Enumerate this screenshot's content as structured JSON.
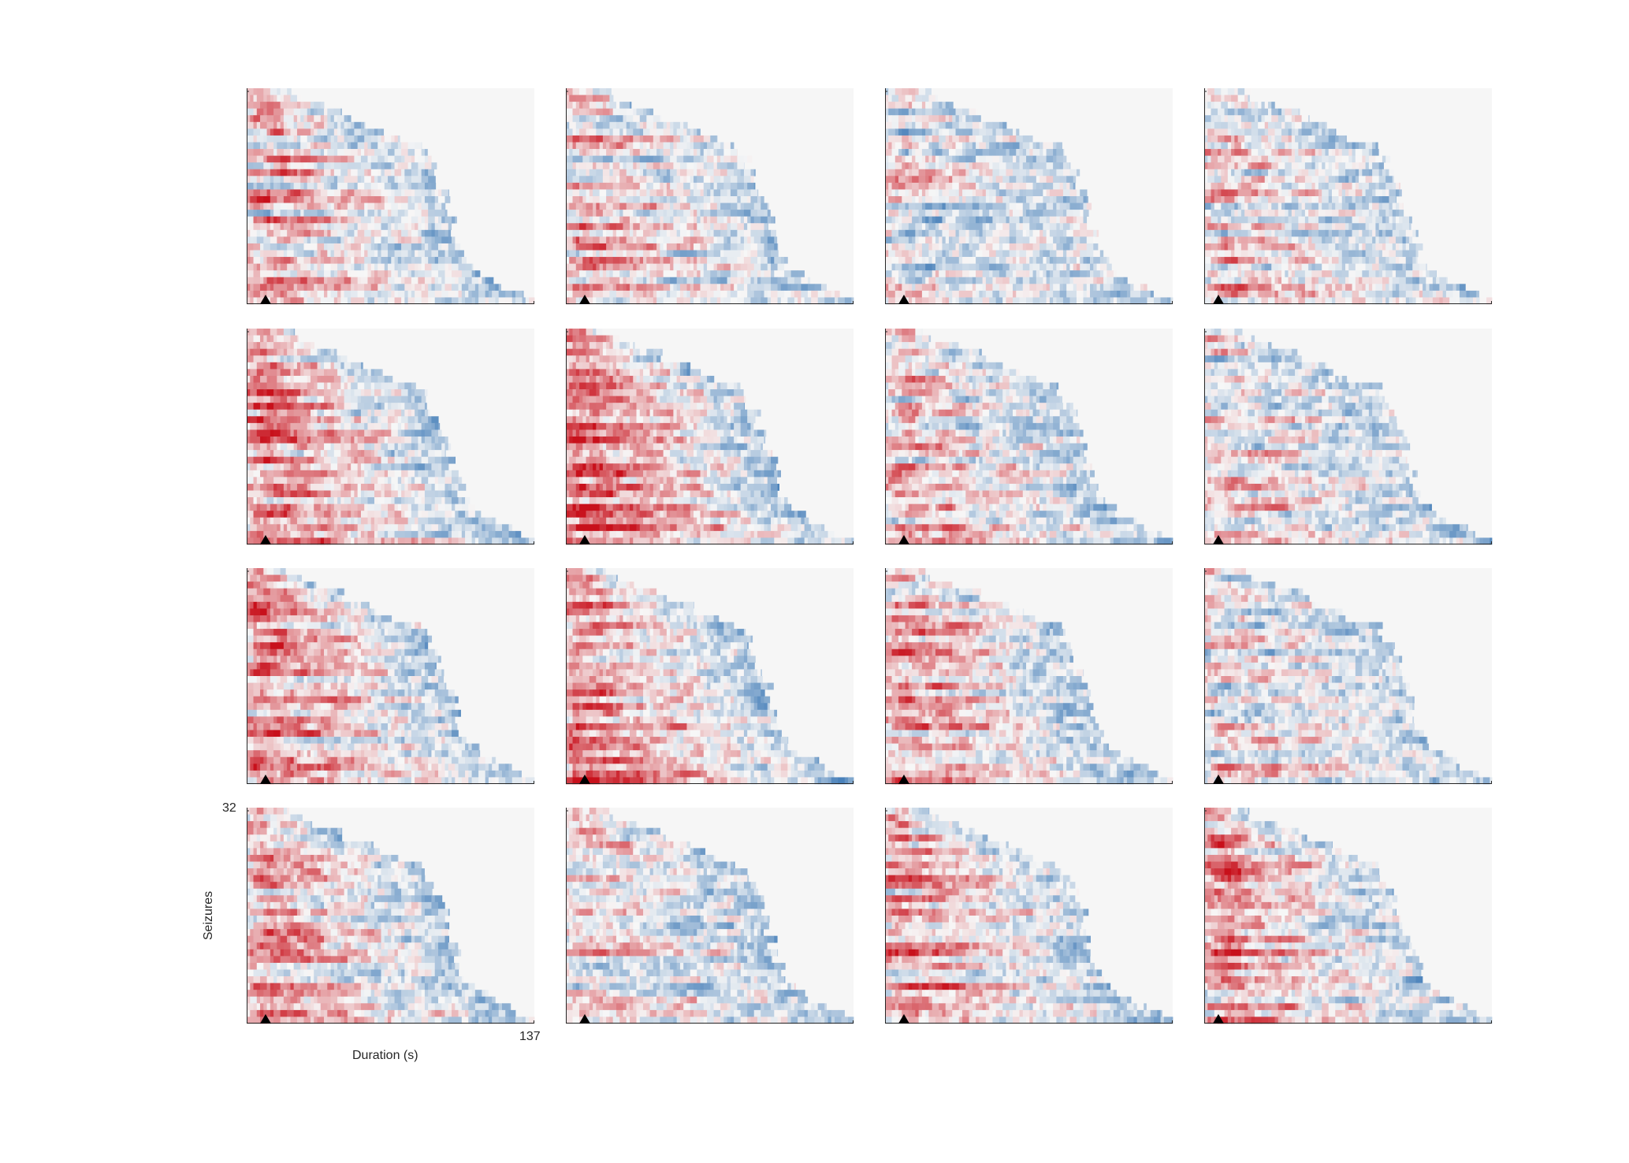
{
  "figure": {
    "layout": {
      "rows": 4,
      "cols": 4
    },
    "xlabel": "Duration (s)",
    "ylabel": "Seizures",
    "x_tick_max": "137",
    "y_tick_max": "32"
  },
  "chart_data": {
    "type": "heatmap",
    "description_key": "16 heatmap panels; rows = seizures (32), x = time (s, 0 to 137); each seizure row ends at its duration; colormap diverging blue-white-red",
    "xlabel": "Duration (s)",
    "ylabel": "Seizures",
    "xlim": [
      0,
      137
    ],
    "ylim": [
      1,
      32
    ],
    "n_seizures": 32,
    "onset_marker_time_s": 9,
    "colormap": {
      "negative": "#2166ac",
      "neutral": "#f7f7f7",
      "positive": "#d6101b"
    },
    "seizure_durations_s": [
      20,
      24,
      34,
      44,
      48,
      58,
      64,
      70,
      82,
      84,
      86,
      88,
      90,
      92,
      92,
      94,
      94,
      96,
      96,
      98,
      98,
      100,
      100,
      102,
      102,
      104,
      108,
      112,
      118,
      124,
      130,
      137
    ],
    "panels": [
      {
        "id": 1,
        "red_bias": 0.35
      },
      {
        "id": 2,
        "red_bias": 0.35
      },
      {
        "id": 3,
        "red_bias": -0.05
      },
      {
        "id": 4,
        "red_bias": 0.15
      },
      {
        "id": 5,
        "red_bias": 0.55
      },
      {
        "id": 6,
        "red_bias": 0.65
      },
      {
        "id": 7,
        "red_bias": 0.2
      },
      {
        "id": 8,
        "red_bias": 0.05
      },
      {
        "id": 9,
        "red_bias": 0.45
      },
      {
        "id": 10,
        "red_bias": 0.6
      },
      {
        "id": 11,
        "red_bias": 0.4
      },
      {
        "id": 12,
        "red_bias": 0.1
      },
      {
        "id": 13,
        "red_bias": 0.45
      },
      {
        "id": 14,
        "red_bias": 0.15
      },
      {
        "id": 15,
        "red_bias": 0.55
      },
      {
        "id": 16,
        "red_bias": 0.45
      }
    ]
  }
}
